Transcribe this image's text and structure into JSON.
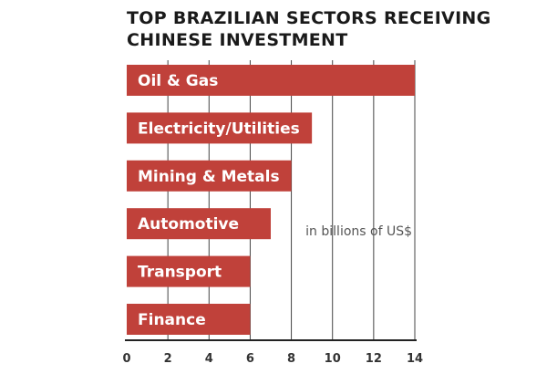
{
  "chart_data": {
    "type": "bar",
    "orientation": "horizontal",
    "title_lines": [
      "TOP BRAZILIAN SECTORS RECEIVING",
      "CHINESE INVESTMENT"
    ],
    "categories": [
      "Oil & Gas",
      "Electricity/Utilities",
      "Mining & Metals",
      "Automotive",
      "Transport",
      "Finance"
    ],
    "values": [
      14,
      9,
      8,
      7,
      6,
      6
    ],
    "xlim": [
      0,
      14
    ],
    "x_ticks": [
      0,
      2,
      4,
      6,
      8,
      10,
      12,
      14
    ],
    "unit_note": "in billions of US$",
    "grid": true,
    "colors": {
      "bar": "#c0413a",
      "grid": "#444444",
      "label": "#ffffff"
    }
  }
}
